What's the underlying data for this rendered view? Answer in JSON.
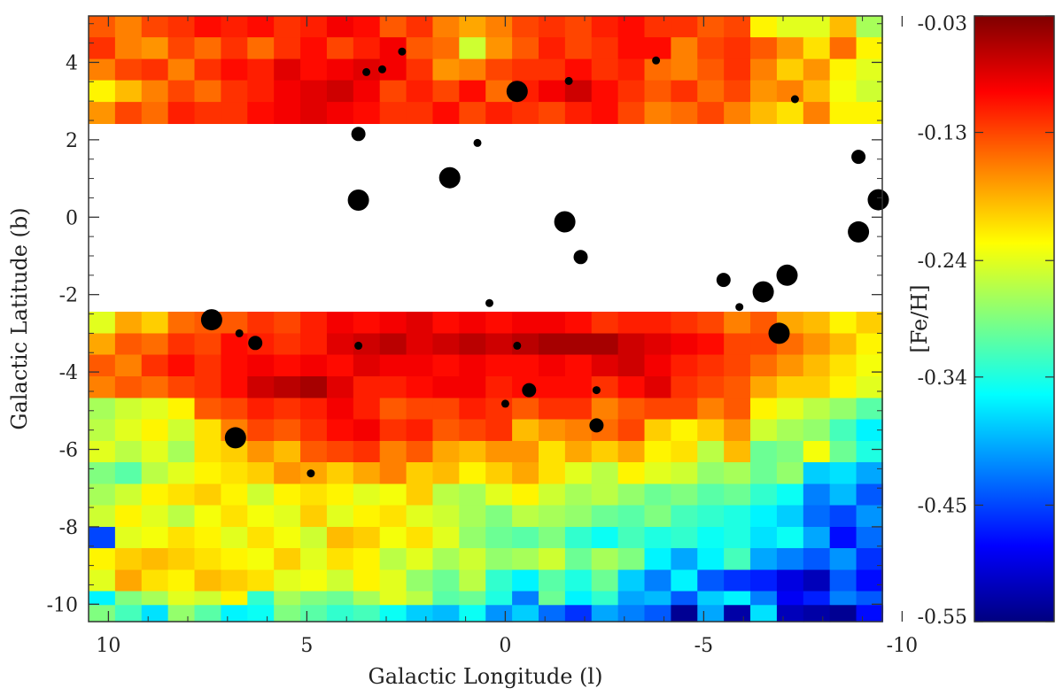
{
  "chart_data": {
    "type": "heatmap",
    "title": "",
    "xlabel": "Galactic Longitude (l)",
    "ylabel": "Galactic Latitude (b)",
    "xlim": [
      10.5,
      -9.5
    ],
    "ylim": [
      -10.45,
      5.2
    ],
    "x_ticks": [
      10,
      5,
      0,
      -5,
      -10
    ],
    "x_tick_labels": [
      "10",
      "5",
      "0",
      "-5",
      "-10"
    ],
    "y_ticks": [
      4,
      2,
      0,
      -2,
      -4,
      -6,
      -8,
      -10
    ],
    "y_tick_labels": [
      "4",
      "2",
      "0",
      "-2",
      "-4",
      "-6",
      "-8",
      "-10"
    ],
    "grid": false,
    "masked_band": {
      "b_min": -2.45,
      "b_max": 2.25
    },
    "cell_size": {
      "dl": 0.667,
      "db": 0.556
    },
    "colorbar": {
      "label": "[Fe/H]",
      "vmin": -0.55,
      "vmax": -0.03,
      "ticks": [
        -0.03,
        -0.13,
        -0.24,
        -0.34,
        -0.45,
        -0.55
      ],
      "tick_labels": [
        "-0.03",
        "-0.13",
        "-0.24",
        "-0.34",
        "-0.45",
        "-0.55"
      ],
      "colormap": [
        "#00007f",
        "#0000ff",
        "#0080ff",
        "#00ffff",
        "#80ff80",
        "#ffff00",
        "#ff8000",
        "#ff0000",
        "#7f0000"
      ]
    },
    "grid_x": {
      "l_start": 10.5,
      "dl": -0.667,
      "columns": 30
    },
    "rows": [
      {
        "b_center": 4.92,
        "values": [
          -0.14,
          -0.16,
          -0.13,
          -0.12,
          -0.1,
          -0.11,
          -0.1,
          -0.12,
          -0.11,
          -0.09,
          -0.1,
          -0.14,
          -0.12,
          -0.16,
          -0.18,
          -0.16,
          -0.13,
          -0.12,
          -0.13,
          -0.11,
          -0.1,
          -0.12,
          -0.12,
          -0.14,
          -0.13,
          -0.22,
          -0.24,
          -0.24,
          -0.19,
          -0.27
        ]
      },
      {
        "b_center": 4.37,
        "values": [
          -0.12,
          -0.16,
          -0.17,
          -0.13,
          -0.15,
          -0.12,
          -0.15,
          -0.12,
          -0.1,
          -0.13,
          -0.11,
          -0.09,
          -0.14,
          -0.15,
          -0.25,
          -0.17,
          -0.14,
          -0.11,
          -0.13,
          -0.12,
          -0.1,
          -0.1,
          -0.16,
          -0.13,
          -0.12,
          -0.14,
          -0.17,
          -0.21,
          -0.15,
          -0.22
        ]
      },
      {
        "b_center": 3.81,
        "values": [
          -0.16,
          -0.13,
          -0.12,
          -0.16,
          -0.12,
          -0.1,
          -0.11,
          -0.08,
          -0.1,
          -0.09,
          -0.08,
          -0.09,
          -0.12,
          -0.17,
          -0.16,
          -0.13,
          -0.12,
          -0.12,
          -0.1,
          -0.12,
          -0.11,
          -0.15,
          -0.16,
          -0.14,
          -0.12,
          -0.16,
          -0.2,
          -0.17,
          -0.22,
          -0.24
        ]
      },
      {
        "b_center": 3.26,
        "values": [
          -0.22,
          -0.19,
          -0.16,
          -0.13,
          -0.15,
          -0.12,
          -0.11,
          -0.09,
          -0.08,
          -0.07,
          -0.09,
          -0.13,
          -0.11,
          -0.13,
          -0.1,
          -0.15,
          -0.11,
          -0.09,
          -0.07,
          -0.1,
          -0.12,
          -0.14,
          -0.12,
          -0.15,
          -0.13,
          -0.17,
          -0.16,
          -0.19,
          -0.23,
          -0.25
        ]
      },
      {
        "b_center": 2.7,
        "values": [
          -0.17,
          -0.13,
          -0.15,
          -0.11,
          -0.12,
          -0.12,
          -0.1,
          -0.09,
          -0.08,
          -0.09,
          -0.1,
          -0.12,
          -0.12,
          -0.1,
          -0.13,
          -0.11,
          -0.12,
          -0.13,
          -0.11,
          -0.1,
          -0.13,
          -0.16,
          -0.15,
          -0.13,
          -0.16,
          -0.19,
          -0.21,
          -0.16,
          -0.22,
          -0.22
        ]
      },
      {
        "b_center": -2.72,
        "values": [
          -0.24,
          -0.18,
          -0.2,
          -0.15,
          -0.14,
          -0.14,
          -0.12,
          -0.13,
          -0.11,
          -0.09,
          -0.1,
          -0.09,
          -0.08,
          -0.1,
          -0.09,
          -0.1,
          -0.09,
          -0.09,
          -0.1,
          -0.12,
          -0.11,
          -0.11,
          -0.12,
          -0.13,
          -0.16,
          -0.14,
          -0.18,
          -0.19,
          -0.22,
          -0.2
        ]
      },
      {
        "b_center": -3.28,
        "values": [
          -0.18,
          -0.14,
          -0.15,
          -0.12,
          -0.13,
          -0.1,
          -0.11,
          -0.12,
          -0.11,
          -0.08,
          -0.07,
          -0.06,
          -0.08,
          -0.07,
          -0.06,
          -0.07,
          -0.06,
          -0.05,
          -0.05,
          -0.05,
          -0.07,
          -0.08,
          -0.09,
          -0.1,
          -0.13,
          -0.13,
          -0.15,
          -0.17,
          -0.19,
          -0.22
        ]
      },
      {
        "b_center": -3.83,
        "values": [
          -0.14,
          -0.16,
          -0.12,
          -0.1,
          -0.12,
          -0.1,
          -0.09,
          -0.1,
          -0.09,
          -0.1,
          -0.08,
          -0.09,
          -0.09,
          -0.1,
          -0.09,
          -0.1,
          -0.1,
          -0.09,
          -0.1,
          -0.08,
          -0.07,
          -0.09,
          -0.11,
          -0.12,
          -0.13,
          -0.15,
          -0.17,
          -0.19,
          -0.21,
          -0.23
        ]
      },
      {
        "b_center": -4.39,
        "values": [
          -0.16,
          -0.14,
          -0.15,
          -0.13,
          -0.12,
          -0.1,
          -0.07,
          -0.06,
          -0.05,
          -0.08,
          -0.11,
          -0.11,
          -0.1,
          -0.09,
          -0.09,
          -0.11,
          -0.1,
          -0.1,
          -0.1,
          -0.12,
          -0.1,
          -0.08,
          -0.12,
          -0.13,
          -0.14,
          -0.18,
          -0.2,
          -0.2,
          -0.22,
          -0.24
        ]
      },
      {
        "b_center": -4.95,
        "values": [
          -0.27,
          -0.25,
          -0.24,
          -0.22,
          -0.14,
          -0.13,
          -0.11,
          -0.12,
          -0.11,
          -0.09,
          -0.11,
          -0.14,
          -0.13,
          -0.13,
          -0.11,
          -0.12,
          -0.14,
          -0.12,
          -0.12,
          -0.16,
          -0.14,
          -0.13,
          -0.13,
          -0.16,
          -0.14,
          -0.22,
          -0.24,
          -0.26,
          -0.28,
          -0.31
        ]
      },
      {
        "b_center": -5.5,
        "values": [
          -0.26,
          -0.24,
          -0.22,
          -0.25,
          -0.21,
          -0.16,
          -0.13,
          -0.14,
          -0.12,
          -0.1,
          -0.09,
          -0.12,
          -0.11,
          -0.14,
          -0.13,
          -0.12,
          -0.19,
          -0.17,
          -0.16,
          -0.15,
          -0.13,
          -0.2,
          -0.22,
          -0.2,
          -0.17,
          -0.25,
          -0.27,
          -0.28,
          -0.32,
          -0.36
        ]
      },
      {
        "b_center": -6.06,
        "values": [
          -0.24,
          -0.26,
          -0.24,
          -0.27,
          -0.21,
          -0.2,
          -0.17,
          -0.19,
          -0.14,
          -0.13,
          -0.12,
          -0.16,
          -0.14,
          -0.18,
          -0.19,
          -0.17,
          -0.17,
          -0.21,
          -0.18,
          -0.2,
          -0.18,
          -0.22,
          -0.21,
          -0.26,
          -0.19,
          -0.3,
          -0.29,
          -0.23,
          -0.3,
          -0.34
        ]
      },
      {
        "b_center": -6.61,
        "values": [
          -0.29,
          -0.31,
          -0.26,
          -0.24,
          -0.22,
          -0.21,
          -0.2,
          -0.17,
          -0.18,
          -0.2,
          -0.18,
          -0.16,
          -0.2,
          -0.19,
          -0.22,
          -0.2,
          -0.18,
          -0.21,
          -0.24,
          -0.26,
          -0.22,
          -0.24,
          -0.25,
          -0.28,
          -0.27,
          -0.3,
          -0.28,
          -0.38,
          -0.37,
          -0.4
        ]
      },
      {
        "b_center": -7.17,
        "values": [
          -0.27,
          -0.25,
          -0.22,
          -0.21,
          -0.2,
          -0.22,
          -0.25,
          -0.22,
          -0.21,
          -0.22,
          -0.24,
          -0.23,
          -0.2,
          -0.26,
          -0.27,
          -0.24,
          -0.22,
          -0.25,
          -0.27,
          -0.26,
          -0.28,
          -0.3,
          -0.29,
          -0.31,
          -0.3,
          -0.33,
          -0.35,
          -0.42,
          -0.39,
          -0.44
        ]
      },
      {
        "b_center": -7.72,
        "values": [
          -0.25,
          -0.22,
          -0.24,
          -0.26,
          -0.23,
          -0.21,
          -0.23,
          -0.24,
          -0.2,
          -0.24,
          -0.22,
          -0.21,
          -0.24,
          -0.25,
          -0.27,
          -0.29,
          -0.26,
          -0.27,
          -0.28,
          -0.3,
          -0.31,
          -0.29,
          -0.32,
          -0.33,
          -0.34,
          -0.36,
          -0.38,
          -0.43,
          -0.45,
          -0.41
        ]
      },
      {
        "b_center": -8.28,
        "values": [
          -0.45,
          -0.24,
          -0.23,
          -0.21,
          -0.22,
          -0.24,
          -0.21,
          -0.23,
          -0.25,
          -0.19,
          -0.2,
          -0.23,
          -0.21,
          -0.24,
          -0.28,
          -0.3,
          -0.31,
          -0.29,
          -0.33,
          -0.35,
          -0.32,
          -0.34,
          -0.33,
          -0.35,
          -0.34,
          -0.37,
          -0.35,
          -0.4,
          -0.48,
          -0.43
        ]
      },
      {
        "b_center": -8.83,
        "values": [
          -0.22,
          -0.2,
          -0.19,
          -0.2,
          -0.21,
          -0.22,
          -0.23,
          -0.2,
          -0.24,
          -0.21,
          -0.22,
          -0.26,
          -0.24,
          -0.27,
          -0.25,
          -0.28,
          -0.27,
          -0.25,
          -0.3,
          -0.27,
          -0.29,
          -0.36,
          -0.4,
          -0.36,
          -0.32,
          -0.4,
          -0.42,
          -0.44,
          -0.41,
          -0.46
        ]
      },
      {
        "b_center": -9.39,
        "values": [
          -0.24,
          -0.18,
          -0.21,
          -0.22,
          -0.19,
          -0.2,
          -0.21,
          -0.24,
          -0.23,
          -0.25,
          -0.22,
          -0.24,
          -0.28,
          -0.3,
          -0.26,
          -0.33,
          -0.36,
          -0.31,
          -0.34,
          -0.3,
          -0.38,
          -0.42,
          -0.36,
          -0.44,
          -0.46,
          -0.47,
          -0.5,
          -0.52,
          -0.44,
          -0.48
        ]
      },
      {
        "b_center": -9.94,
        "values": [
          -0.36,
          -0.29,
          -0.27,
          -0.24,
          -0.25,
          -0.22,
          -0.33,
          -0.27,
          -0.29,
          -0.3,
          -0.27,
          -0.24,
          -0.26,
          -0.31,
          -0.3,
          -0.34,
          -0.42,
          -0.3,
          -0.36,
          -0.33,
          -0.4,
          -0.39,
          -0.44,
          -0.38,
          -0.36,
          -0.42,
          -0.49,
          -0.47,
          -0.42,
          -0.44
        ]
      },
      {
        "b_center": -10.3,
        "values": [
          -0.29,
          -0.32,
          -0.37,
          -0.28,
          -0.31,
          -0.36,
          -0.35,
          -0.29,
          -0.31,
          -0.33,
          -0.32,
          -0.35,
          -0.38,
          -0.39,
          -0.35,
          -0.41,
          -0.38,
          -0.43,
          -0.46,
          -0.4,
          -0.42,
          -0.44,
          -0.54,
          -0.4,
          -0.53,
          -0.37,
          -0.52,
          -0.53,
          -0.54,
          -0.48
        ]
      }
    ],
    "markers": [
      {
        "l": 3.5,
        "b": 3.75,
        "size": "small"
      },
      {
        "l": 3.1,
        "b": 3.82,
        "size": "small"
      },
      {
        "l": 2.6,
        "b": 4.28,
        "size": "small"
      },
      {
        "l": -0.3,
        "b": 3.25,
        "size": "large"
      },
      {
        "l": -1.6,
        "b": 3.52,
        "size": "small"
      },
      {
        "l": -3.8,
        "b": 4.05,
        "size": "small"
      },
      {
        "l": -7.3,
        "b": 3.05,
        "size": "small"
      },
      {
        "l": 3.7,
        "b": 2.15,
        "size": "medium"
      },
      {
        "l": 0.7,
        "b": 1.92,
        "size": "small"
      },
      {
        "l": 1.4,
        "b": 1.02,
        "size": "large"
      },
      {
        "l": 3.7,
        "b": 0.44,
        "size": "large"
      },
      {
        "l": -1.5,
        "b": -0.12,
        "size": "large"
      },
      {
        "l": -1.9,
        "b": -1.03,
        "size": "medium"
      },
      {
        "l": -5.5,
        "b": -1.62,
        "size": "medium"
      },
      {
        "l": -6.5,
        "b": -1.93,
        "size": "large"
      },
      {
        "l": -7.1,
        "b": -1.5,
        "size": "large"
      },
      {
        "l": -8.9,
        "b": -0.38,
        "size": "large"
      },
      {
        "l": -8.9,
        "b": 1.56,
        "size": "medium"
      },
      {
        "l": -9.4,
        "b": 0.45,
        "size": "large"
      },
      {
        "l": -5.9,
        "b": -2.32,
        "size": "small"
      },
      {
        "l": 0.4,
        "b": -2.22,
        "size": "small"
      },
      {
        "l": 7.4,
        "b": -2.65,
        "size": "large"
      },
      {
        "l": 6.7,
        "b": -3.0,
        "size": "small"
      },
      {
        "l": 6.3,
        "b": -3.25,
        "size": "medium"
      },
      {
        "l": -6.9,
        "b": -3.0,
        "size": "large"
      },
      {
        "l": 3.7,
        "b": -3.32,
        "size": "small"
      },
      {
        "l": -0.3,
        "b": -3.32,
        "size": "small"
      },
      {
        "l": -0.6,
        "b": -4.47,
        "size": "medium"
      },
      {
        "l": -2.3,
        "b": -4.47,
        "size": "small"
      },
      {
        "l": 0.0,
        "b": -4.82,
        "size": "small"
      },
      {
        "l": -2.3,
        "b": -5.38,
        "size": "medium"
      },
      {
        "l": 6.8,
        "b": -5.7,
        "size": "large"
      },
      {
        "l": 4.9,
        "b": -6.62,
        "size": "small"
      }
    ]
  }
}
